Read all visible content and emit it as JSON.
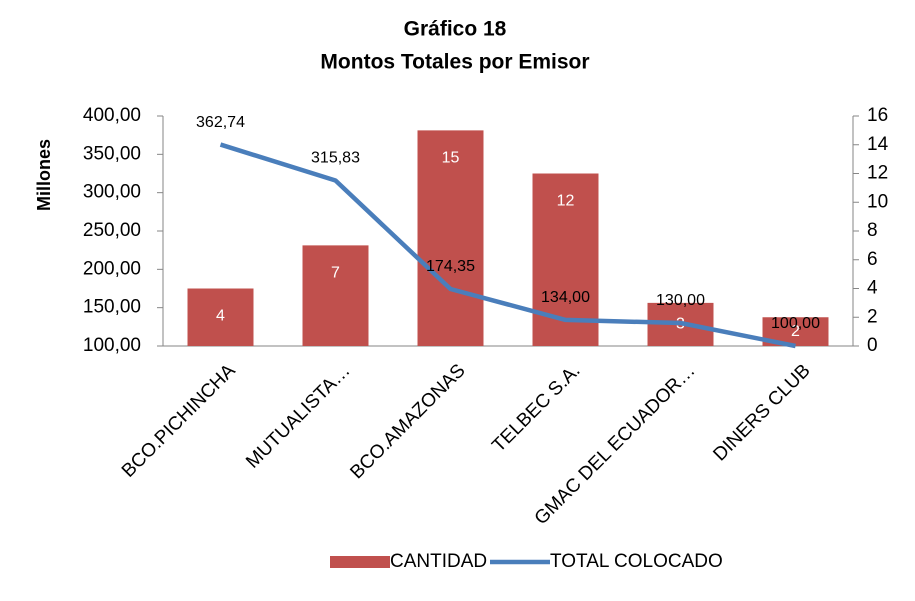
{
  "chart_data": {
    "type": "bar-line",
    "title": "Gráfico 18",
    "subtitle": "Montos Totales por Emisor",
    "y_label": "Millones",
    "categories": [
      "BCO.PICHINCHA",
      "MUTUALISTA…",
      "BCO.AMAZONAS",
      "TELBEC S.A.",
      "GMAC DEL ECUADOR…",
      "DINERS CLUB"
    ],
    "series": [
      {
        "name": "CANTIDAD",
        "type": "bar",
        "axis": "y2",
        "color": "#c0504d",
        "values": [
          4,
          7,
          15,
          12,
          3,
          2
        ]
      },
      {
        "name": "TOTAL COLOCADO",
        "type": "line",
        "axis": "y",
        "color": "#4a7ebb",
        "values": [
          362.74,
          315.83,
          174.35,
          134.0,
          130.0,
          100.0
        ],
        "value_labels": [
          "362,74",
          "315,83",
          "174,35",
          "134,00",
          "130,00",
          "100,00"
        ]
      }
    ],
    "ylim": [
      100,
      400
    ],
    "yticks": [
      {
        "value": 100,
        "label": "100,00"
      },
      {
        "value": 150,
        "label": "150,00"
      },
      {
        "value": 200,
        "label": "200,00"
      },
      {
        "value": 250,
        "label": "250,00"
      },
      {
        "value": 300,
        "label": "300,00"
      },
      {
        "value": 350,
        "label": "350,00"
      },
      {
        "value": 400,
        "label": "400,00"
      }
    ],
    "y2lim": [
      0,
      16
    ],
    "y2ticks": [
      0,
      2,
      4,
      6,
      8,
      10,
      12,
      14,
      16
    ],
    "legend": "bottom"
  }
}
